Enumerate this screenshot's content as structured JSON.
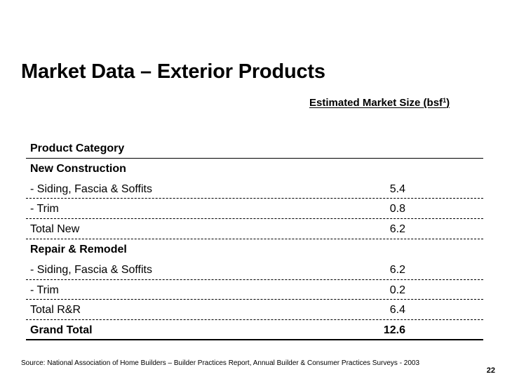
{
  "slide": {
    "title": "Market Data – Exterior Products",
    "column_header": "Estimated Market Size (bsf",
    "column_header_superscript": "1",
    "column_header_close": ")",
    "source": "Source: National Association of Home Builders – Builder Practices Report, Annual Builder & Consumer Practices Surveys - 2003",
    "page_number": "22"
  },
  "table": {
    "header": "Product Category",
    "rows": [
      {
        "label": "New Construction",
        "value": ""
      },
      {
        "label": "- Siding, Fascia & Soffits",
        "value": "5.4"
      },
      {
        "label": "- Trim",
        "value": "0.8"
      },
      {
        "label": "Total New",
        "value": "6.2"
      },
      {
        "label": "Repair & Remodel",
        "value": ""
      },
      {
        "label": "- Siding, Fascia & Soffits",
        "value": "6.2"
      },
      {
        "label": "- Trim",
        "value": "0.2"
      },
      {
        "label": "Total R&R",
        "value": "6.4"
      },
      {
        "label": "Grand Total",
        "value": "12.6"
      }
    ]
  }
}
